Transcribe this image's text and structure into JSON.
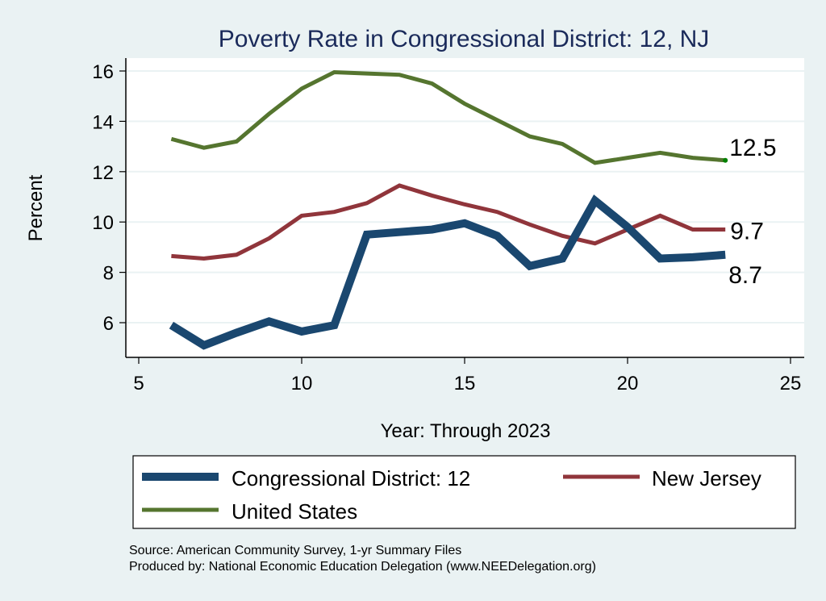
{
  "chart_data": {
    "type": "line",
    "title": "Poverty Rate in Congressional District:  12, NJ",
    "xlabel": "Year: Through 2023",
    "ylabel": "Percent",
    "xlim": [
      4.6,
      25.4
    ],
    "ylim": [
      4.6,
      16.5
    ],
    "xticks": [
      5,
      10,
      15,
      20,
      25
    ],
    "yticks": [
      6,
      8,
      10,
      12,
      14,
      16
    ],
    "grid": "horizontal",
    "legend_position": "bottom",
    "x": [
      6,
      7,
      8,
      9,
      10,
      11,
      12,
      13,
      14,
      15,
      16,
      17,
      18,
      19,
      20,
      21,
      22,
      23
    ],
    "series": [
      {
        "name": "Congressional District:  12",
        "color": "#1a476f",
        "values": [
          5.9,
          5.1,
          5.6,
          6.05,
          5.65,
          5.9,
          9.5,
          9.6,
          9.7,
          9.95,
          9.45,
          8.25,
          8.55,
          10.85,
          9.8,
          8.55,
          8.6,
          8.7
        ],
        "end_label": "8.7",
        "thick": true
      },
      {
        "name": "New Jersey",
        "color": "#90353b",
        "values": [
          8.65,
          8.55,
          8.7,
          9.35,
          10.25,
          10.4,
          10.75,
          11.45,
          11.05,
          10.7,
          10.4,
          9.9,
          9.45,
          9.15,
          9.7,
          10.25,
          9.7,
          9.7
        ],
        "end_label": "9.7",
        "thick": false
      },
      {
        "name": "United States",
        "color": "#55752f",
        "values": [
          13.3,
          12.95,
          13.2,
          14.3,
          15.3,
          15.95,
          15.9,
          15.85,
          15.5,
          14.7,
          14.05,
          13.4,
          13.1,
          12.35,
          12.55,
          12.75,
          12.55,
          12.45
        ],
        "end_label": "12.5",
        "thick": false,
        "end_marker_color": "#008000"
      }
    ]
  },
  "notes": {
    "source": "Source: American Community Survey, 1-yr Summary Files",
    "produced_by": "Produced by: National Economic Education Delegation (www.NEEDelegation.org)"
  }
}
